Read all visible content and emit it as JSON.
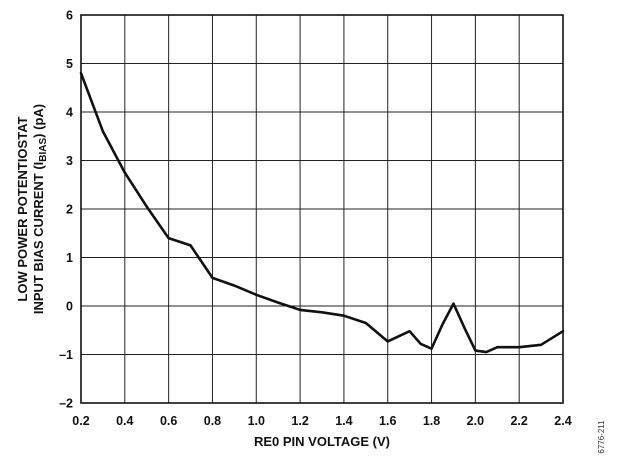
{
  "chart_data": {
    "type": "line",
    "xlabel": "RE0 PIN VOLTAGE (V)",
    "ylabel": {
      "line1": "LOW POWER POTENTIOSTAT",
      "line2_prefix": "INPUT BIAS CURRENT (I",
      "line2_sub": "BIAS",
      "line2_suffix": ") (pA)"
    },
    "xlim": [
      0.2,
      2.4
    ],
    "ylim": [
      -2,
      6
    ],
    "x_ticks": [
      "0.2",
      "0.4",
      "0.6",
      "0.8",
      "1.0",
      "1.2",
      "1.4",
      "1.6",
      "1.8",
      "2.0",
      "2.2",
      "2.4"
    ],
    "y_ticks": [
      "6",
      "5",
      "4",
      "3",
      "2",
      "1",
      "0",
      "–1",
      "–2"
    ],
    "grid": true,
    "series": [
      {
        "x": [
          0.2,
          0.3,
          0.4,
          0.5,
          0.6,
          0.7,
          0.8,
          0.9,
          1.0,
          1.1,
          1.2,
          1.3,
          1.4,
          1.5,
          1.6,
          1.7,
          1.75,
          1.8,
          1.85,
          1.9,
          1.95,
          2.0,
          2.05,
          2.1,
          2.2,
          2.3,
          2.4
        ],
        "y": [
          4.8,
          3.6,
          2.75,
          2.05,
          1.4,
          1.25,
          0.58,
          0.42,
          0.23,
          0.07,
          -0.08,
          -0.13,
          -0.2,
          -0.35,
          -0.73,
          -0.52,
          -0.78,
          -0.88,
          -0.38,
          0.05,
          -0.45,
          -0.92,
          -0.95,
          -0.85,
          -0.85,
          -0.8,
          -0.52
        ]
      }
    ]
  },
  "figure_code": "6776-211"
}
